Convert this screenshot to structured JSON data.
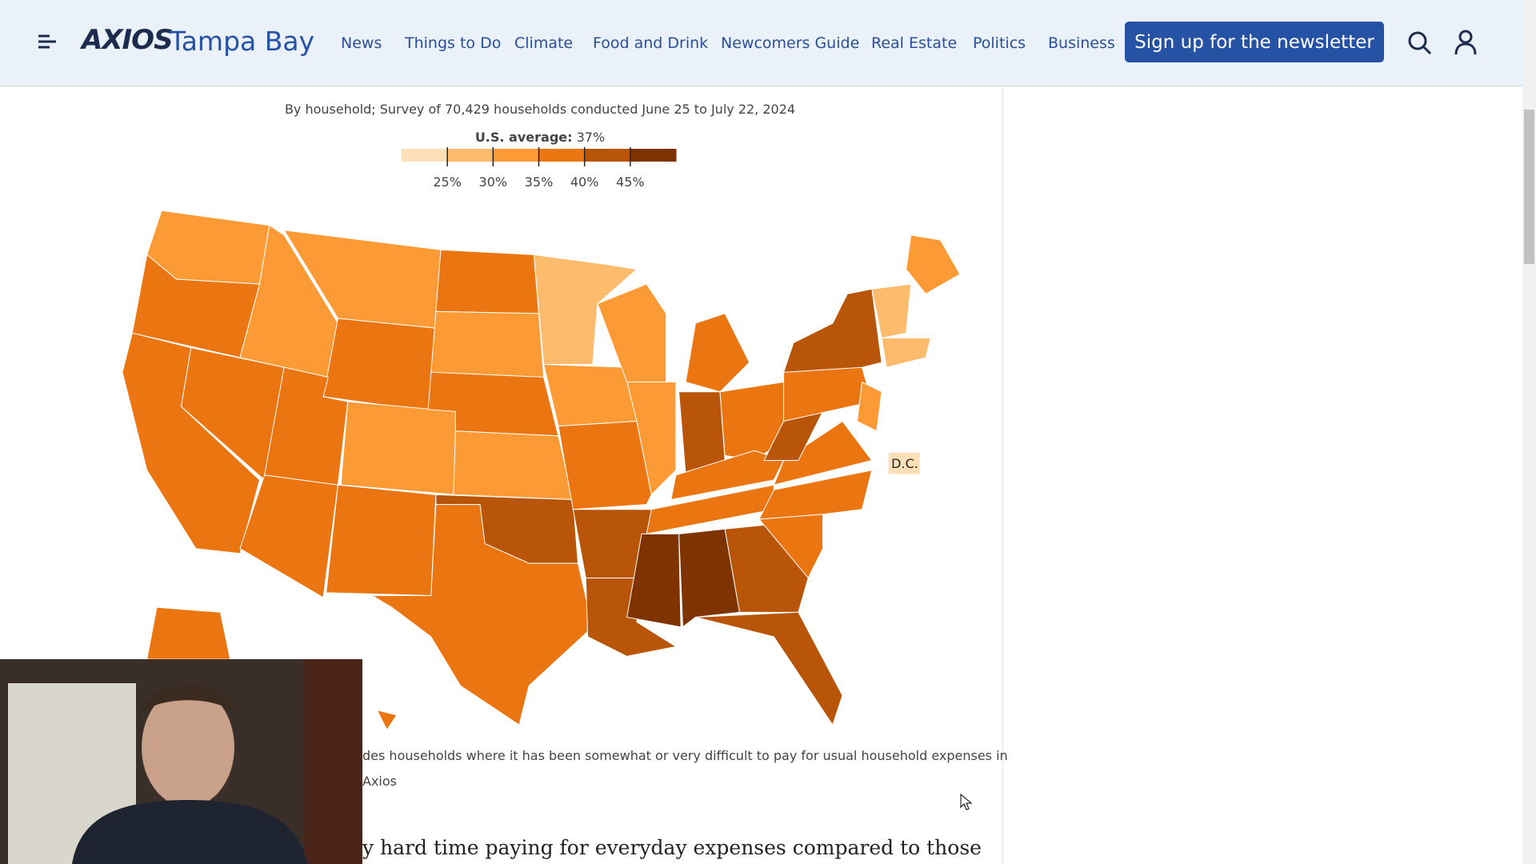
{
  "header": {
    "logo_brand": "AXIOS",
    "logo_city": "Tampa Bay",
    "nav": [
      "News",
      "Things to Do",
      "Climate",
      "Food and Drink",
      "Newcomers Guide",
      "Real Estate",
      "Politics",
      "Business"
    ],
    "cta": "Sign up for the newsletter"
  },
  "article": {
    "subtitle": "By household; Survey of 70,429 households conducted June 25 to July 22, 2024",
    "legend": {
      "average_label": "U.S. average:",
      "average_value": "37%",
      "ticks": [
        "25%",
        "30%",
        "35%",
        "40%",
        "45%"
      ]
    },
    "map_label": "D.C.",
    "caption_line1": "des households where it has been somewhat or very difficult to pay for usual household expenses in",
    "caption_line2": "Axios",
    "body_text": "y hard time paying for everyday expenses compared to those"
  }
}
